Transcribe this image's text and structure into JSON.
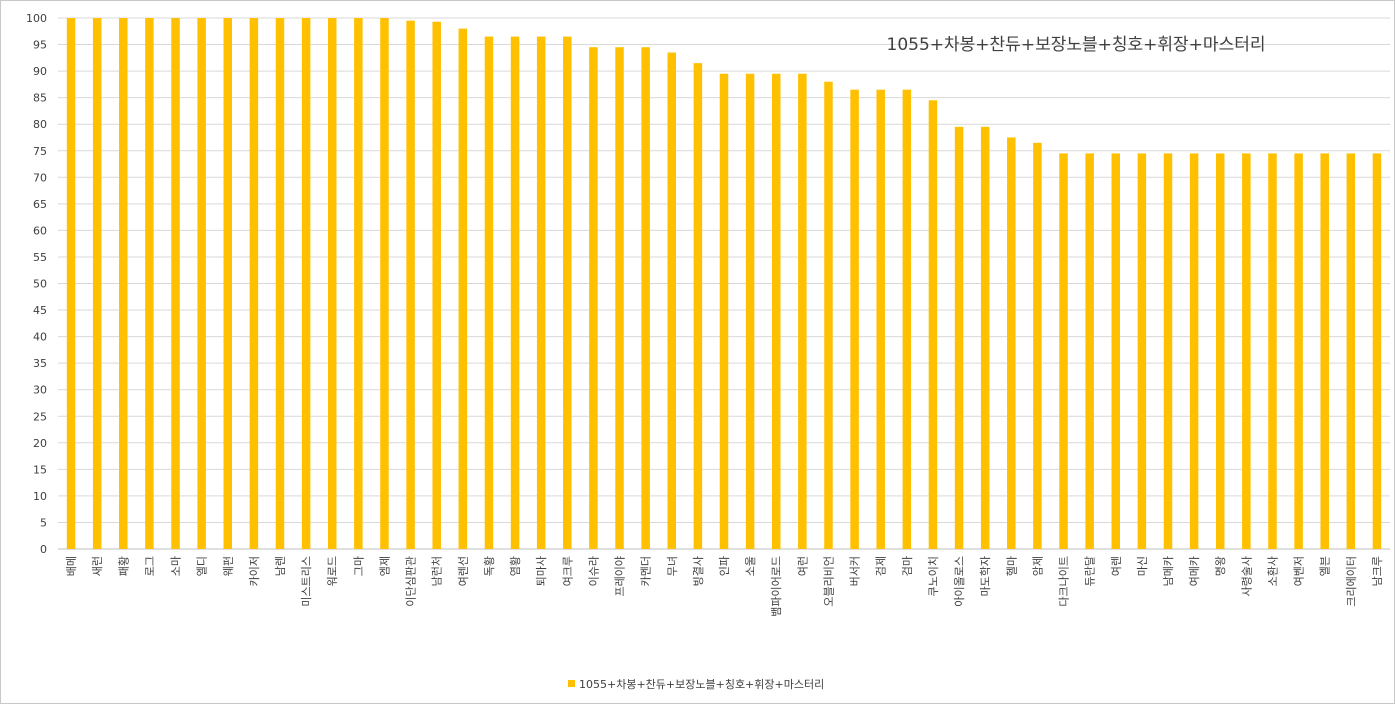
{
  "chart_data": {
    "type": "bar",
    "title": "1055+차봉+찬듀+보장노블+칭호+휘장+마스터리",
    "xlabel": "",
    "ylabel": "",
    "ylim": [
      0,
      100
    ],
    "yticks": [
      0,
      5,
      10,
      15,
      20,
      25,
      30,
      35,
      40,
      45,
      50,
      55,
      60,
      65,
      70,
      75,
      80,
      85,
      90,
      95,
      100
    ],
    "grid": true,
    "legend_position": "bottom",
    "bar_color": "#FFC000",
    "categories": [
      "배메",
      "새런",
      "패황",
      "로그",
      "소마",
      "엘디",
      "웨펀",
      "카이저",
      "남렌",
      "미스트리스",
      "워로드",
      "그마",
      "엠제",
      "이단심판관",
      "남런처",
      "여렌선",
      "독황",
      "염황",
      "퇴마사",
      "여크루",
      "이슈라",
      "프레이야",
      "카멘더",
      "무녀",
      "빙결사",
      "인파",
      "소울",
      "뱀파이어로드",
      "여런",
      "오블리비언",
      "버서커",
      "검제",
      "검마",
      "쿠노이치",
      "아이올로스",
      "마도학자",
      "헬마",
      "암제",
      "다크나이트",
      "듀란달",
      "여렌",
      "마신",
      "남메카",
      "여메카",
      "명왕",
      "사령술사",
      "소환사",
      "여벤저",
      "엘븐",
      "크리에이터",
      "남크루"
    ],
    "series": [
      {
        "name": "1055+차봉+찬듀+보장노블+칭호+휘장+마스터리",
        "values": [
          100,
          100,
          100,
          100,
          100,
          100,
          100,
          100,
          100,
          100,
          100,
          100,
          100,
          99.5,
          99.3,
          98,
          96.5,
          96.5,
          96.5,
          96.5,
          94.5,
          94.5,
          94.5,
          93.5,
          91.5,
          89.5,
          89.5,
          89.5,
          89.5,
          88,
          86.5,
          86.5,
          86.5,
          84.5,
          79.5,
          79.5,
          77.5,
          76.5,
          74.5,
          74.5,
          74.5,
          74.5,
          74.5,
          74.5,
          74.5,
          74.5,
          74.5,
          74.5,
          74.5,
          74.5,
          74.5
        ]
      }
    ]
  }
}
